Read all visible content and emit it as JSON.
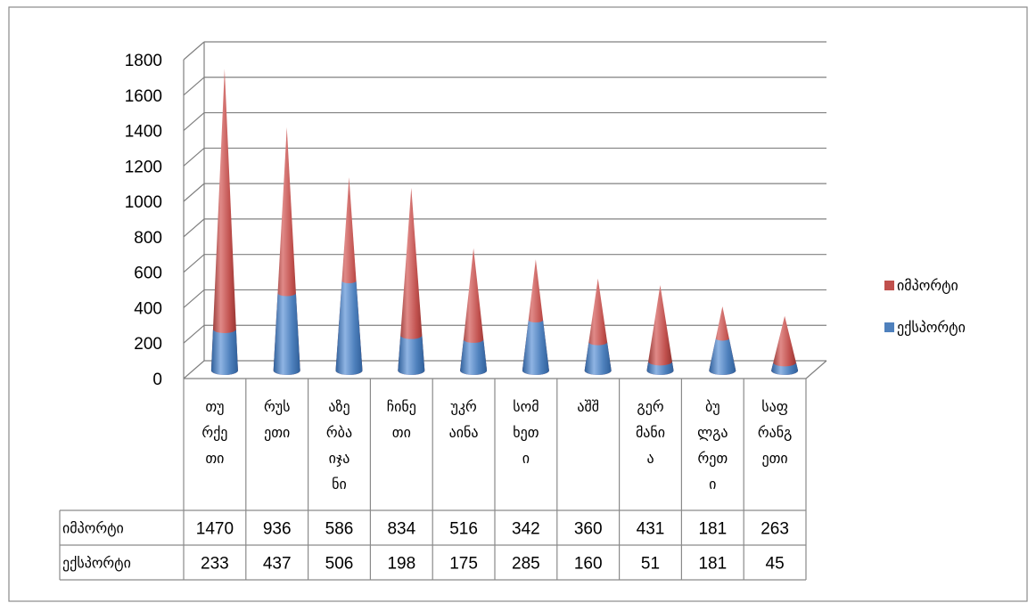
{
  "chart_data": {
    "type": "bar",
    "style": "3d-cone-stacked",
    "title": "",
    "ylim": [
      0,
      1800
    ],
    "yticks": [
      0,
      200,
      400,
      600,
      800,
      1000,
      1200,
      1400,
      1600,
      1800
    ],
    "grid": true,
    "legend_position": "right",
    "categories": [
      [
        "თუ",
        "რქე",
        "თი"
      ],
      [
        "რუს",
        "ეთი"
      ],
      [
        "აზე",
        "რბა",
        "იჯა",
        "ნი"
      ],
      [
        "ჩინე",
        "თი"
      ],
      [
        "უკრ",
        "აინა"
      ],
      [
        "სომ",
        "ხეთ",
        "ი"
      ],
      [
        "აშშ"
      ],
      [
        "გერ",
        "მანი",
        "ა"
      ],
      [
        "ბუ",
        "ლგა",
        "რეთ",
        "ი"
      ],
      [
        "საფ",
        "რანგ",
        "ეთი"
      ]
    ],
    "series": [
      {
        "name": "ექსპორტი",
        "color": "#4F81BD",
        "values": [
          233,
          437,
          506,
          198,
          175,
          285,
          160,
          51,
          181,
          45
        ]
      },
      {
        "name": "იმპორტი",
        "color": "#C0504D",
        "values": [
          1470,
          936,
          586,
          834,
          516,
          342,
          360,
          431,
          181,
          263
        ]
      }
    ],
    "data_table": {
      "rows": [
        {
          "label": "იმპორტი",
          "values": [
            "1470",
            "936",
            "586",
            "834",
            "516",
            "342",
            "360",
            "431",
            "181",
            "263"
          ]
        },
        {
          "label": "ექსპორტი",
          "values": [
            "233",
            "437",
            "506",
            "198",
            "175",
            "285",
            "160",
            "51",
            "181",
            "45"
          ]
        }
      ]
    },
    "legend": [
      {
        "label": "იმპორტი",
        "color": "#C0504D"
      },
      {
        "label": "ექსპორტი",
        "color": "#4F81BD"
      }
    ]
  }
}
